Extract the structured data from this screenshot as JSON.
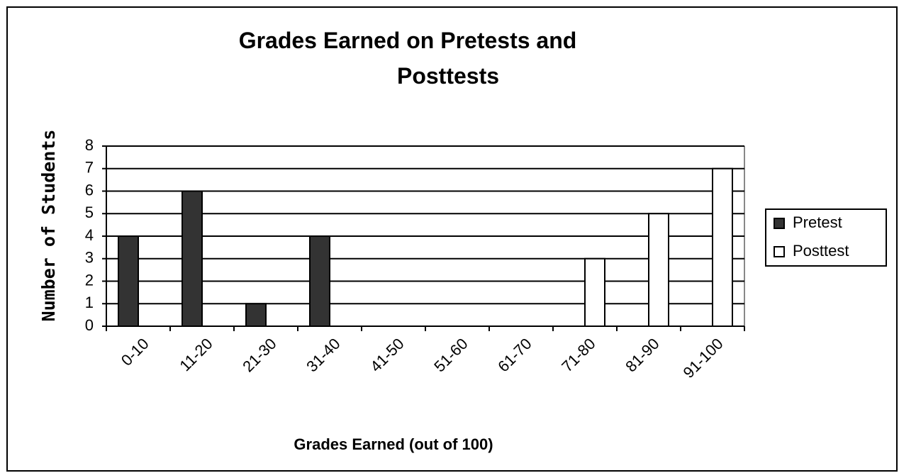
{
  "chart_data": {
    "type": "bar",
    "title": "Grades Earned on Pretests and Posttests",
    "x_label": "Grades Earned (out of 100)",
    "y_label": "Number of Students",
    "categories": [
      "0-10",
      "11-20",
      "21-30",
      "31-40",
      "41-50",
      "51-60",
      "61-70",
      "71-80",
      "81-90",
      "91-100"
    ],
    "series": [
      {
        "name": "Pretest",
        "color": "#333333",
        "values": [
          4,
          6,
          1,
          4,
          0,
          0,
          0,
          0,
          0,
          0
        ]
      },
      {
        "name": "Posttest",
        "color": "#ffffff",
        "values": [
          0,
          0,
          0,
          0,
          0,
          0,
          0,
          3,
          5,
          7
        ]
      }
    ],
    "ylim": [
      0,
      8
    ],
    "yticks": [
      0,
      1,
      2,
      3,
      4,
      5,
      6,
      7,
      8
    ],
    "grid": true,
    "legend": "right"
  }
}
